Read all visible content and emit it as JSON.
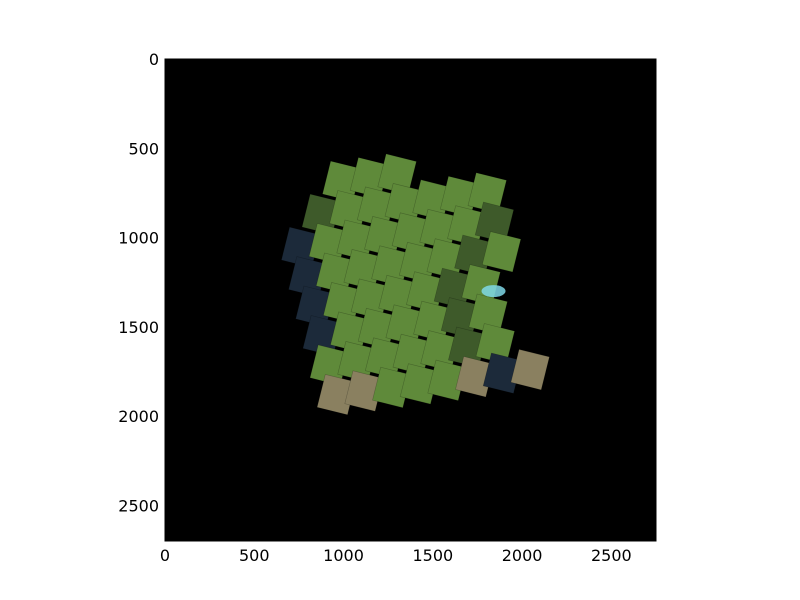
{
  "chart_data": {
    "type": "heatmap",
    "title": "",
    "xlabel": "",
    "ylabel": "",
    "xlim": [
      0,
      2750
    ],
    "ylim": [
      2700,
      0
    ],
    "y_inverted": true,
    "grid": false,
    "x_ticks": [
      0,
      500,
      1000,
      1500,
      2000,
      2500
    ],
    "y_ticks": [
      0,
      500,
      1000,
      1500,
      2000,
      2500
    ],
    "x_tick_labels": [
      "0",
      "500",
      "1000",
      "1500",
      "2000",
      "2500"
    ],
    "y_tick_labels": [
      "0",
      "500",
      "1000",
      "1500",
      "2000",
      "2500"
    ],
    "image": {
      "description_colors": {
        "background": "#000000",
        "sea": "#1c2a3a",
        "land": "#5f8a3a",
        "land_dark": "#3e5a2a",
        "land_dry": "#8a8060",
        "snow": "#7fd8e8"
      },
      "mosaic_extent_x": [
        620,
        2110
      ],
      "mosaic_extent_y": [
        610,
        2090
      ]
    }
  }
}
